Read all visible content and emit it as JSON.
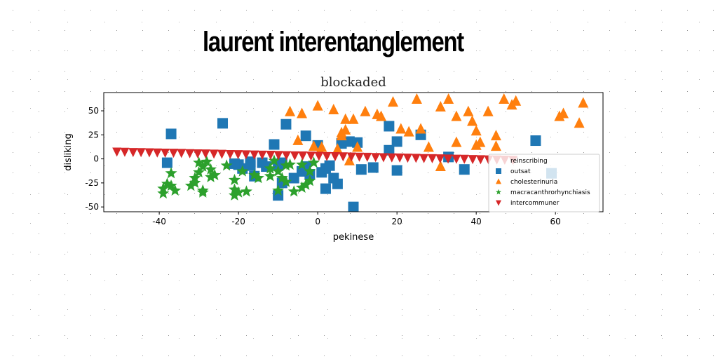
{
  "headline": "laurent interentanglement",
  "chart_data": {
    "type": "scatter",
    "title": "blockaded",
    "xlabel": "pekinese",
    "ylabel": "disliking",
    "xlim": [
      -54,
      72
    ],
    "ylim": [
      -55,
      69
    ],
    "xticks": [
      -40,
      -20,
      0,
      20,
      40,
      60
    ],
    "yticks": [
      -50,
      -25,
      0,
      25,
      50
    ],
    "legend_placement": "lower right",
    "series": [
      {
        "name": "reinscribing",
        "marker": "none",
        "color": "#ffffff",
        "points": []
      },
      {
        "name": "outsat",
        "marker": "square",
        "color": "#1f77b4",
        "points": [
          [
            -37,
            26
          ],
          [
            -24,
            37
          ],
          [
            -38,
            -4
          ],
          [
            -8,
            36
          ],
          [
            -11,
            15
          ],
          [
            -3,
            24
          ],
          [
            0,
            14
          ],
          [
            -2,
            -16
          ],
          [
            -4,
            -13
          ],
          [
            -9,
            -4
          ],
          [
            -10,
            -7
          ],
          [
            -14,
            -4
          ],
          [
            -17,
            -7
          ],
          [
            -19,
            -10
          ],
          [
            -20,
            -6
          ],
          [
            -21,
            -5
          ],
          [
            -16,
            -18
          ],
          [
            -9,
            -25
          ],
          [
            -6,
            -20
          ],
          [
            -3,
            -8
          ],
          [
            1,
            -14
          ],
          [
            2,
            -10
          ],
          [
            3,
            -7
          ],
          [
            4,
            -20
          ],
          [
            2,
            -31
          ],
          [
            5,
            -26
          ],
          [
            6,
            16
          ],
          [
            8,
            18
          ],
          [
            10,
            17
          ],
          [
            9,
            -50
          ],
          [
            11,
            -11
          ],
          [
            14,
            -9
          ],
          [
            18,
            34
          ],
          [
            18,
            9
          ],
          [
            20,
            18
          ],
          [
            20,
            -12
          ],
          [
            26,
            25
          ],
          [
            33,
            2
          ],
          [
            37,
            -11
          ],
          [
            55,
            19
          ],
          [
            59,
            -15
          ],
          [
            -10,
            -38
          ],
          [
            -13,
            -8
          ],
          [
            -17,
            -3
          ]
        ]
      },
      {
        "name": "cholesterinuria",
        "marker": "triangle-up",
        "color": "#ff7f0e",
        "points": [
          [
            -7,
            49
          ],
          [
            -4,
            47
          ],
          [
            0,
            55
          ],
          [
            4,
            51
          ],
          [
            7,
            41
          ],
          [
            9,
            41
          ],
          [
            12,
            49
          ],
          [
            15,
            46
          ],
          [
            16,
            44
          ],
          [
            19,
            59
          ],
          [
            25,
            62
          ],
          [
            31,
            54
          ],
          [
            33,
            62
          ],
          [
            35,
            44
          ],
          [
            38,
            49
          ],
          [
            39,
            39
          ],
          [
            40,
            29
          ],
          [
            41,
            17
          ],
          [
            43,
            49
          ],
          [
            45,
            24
          ],
          [
            45,
            13
          ],
          [
            47,
            62
          ],
          [
            49,
            56
          ],
          [
            50,
            60
          ],
          [
            61,
            44
          ],
          [
            62,
            47
          ],
          [
            66,
            37
          ],
          [
            67,
            58
          ],
          [
            -5,
            19
          ],
          [
            6,
            27
          ],
          [
            6,
            24
          ],
          [
            7,
            30
          ],
          [
            10,
            12
          ],
          [
            8,
            -2
          ],
          [
            5,
            10
          ],
          [
            21,
            31
          ],
          [
            23,
            28
          ],
          [
            26,
            31
          ],
          [
            28,
            12
          ],
          [
            31,
            -8
          ],
          [
            35,
            17
          ],
          [
            40,
            14
          ],
          [
            -1,
            13
          ],
          [
            1,
            12
          ]
        ]
      },
      {
        "name": "macracanthrorhynchiasis",
        "marker": "star",
        "color": "#2ca02c",
        "points": [
          [
            -39,
            -36
          ],
          [
            -39,
            -31
          ],
          [
            -38,
            -26
          ],
          [
            -37,
            -15
          ],
          [
            -36,
            -33
          ],
          [
            -32,
            -28
          ],
          [
            -31,
            -20
          ],
          [
            -31,
            -25
          ],
          [
            -30,
            -4
          ],
          [
            -30,
            -14
          ],
          [
            -29,
            -35
          ],
          [
            -29,
            -33
          ],
          [
            -29,
            -8
          ],
          [
            -28,
            -3
          ],
          [
            -27,
            -19
          ],
          [
            -27,
            -11
          ],
          [
            -26,
            -17
          ],
          [
            -23,
            -7
          ],
          [
            -21,
            -22
          ],
          [
            -21,
            -32
          ],
          [
            -21,
            -38
          ],
          [
            -20,
            -35
          ],
          [
            -19,
            -13
          ],
          [
            -18,
            -34
          ],
          [
            -16,
            -17
          ],
          [
            -15,
            -20
          ],
          [
            -12,
            -18
          ],
          [
            -12,
            -10
          ],
          [
            -11,
            -2
          ],
          [
            -10,
            -33
          ],
          [
            -10,
            -13
          ],
          [
            -9,
            -20
          ],
          [
            -8,
            -7
          ],
          [
            -8,
            -24
          ],
          [
            -7,
            -6
          ],
          [
            -6,
            -34
          ],
          [
            -4,
            -30
          ],
          [
            -4,
            -6
          ],
          [
            -3,
            -27
          ],
          [
            -2,
            -13
          ],
          [
            -2,
            -23
          ],
          [
            -1,
            -4
          ],
          [
            -37,
            -28
          ]
        ]
      },
      {
        "name": "intercommuner",
        "marker": "triangle-down",
        "color": "#d62728",
        "points": [
          [
            -50.7,
            7.7
          ],
          [
            -48.7,
            7.5
          ],
          [
            -46.6,
            7.3
          ],
          [
            -44.6,
            7.2
          ],
          [
            -42.5,
            7.0
          ],
          [
            -40.5,
            6.8
          ],
          [
            -38.5,
            6.6
          ],
          [
            -36.4,
            6.5
          ],
          [
            -34.4,
            6.3
          ],
          [
            -32.3,
            6.1
          ],
          [
            -30.3,
            5.9
          ],
          [
            -28.3,
            5.8
          ],
          [
            -26.2,
            5.6
          ],
          [
            -24.2,
            5.4
          ],
          [
            -22.1,
            5.2
          ],
          [
            -20.1,
            5.1
          ],
          [
            -18.1,
            4.9
          ],
          [
            -16.0,
            4.7
          ],
          [
            -14.0,
            4.5
          ],
          [
            -11.9,
            4.4
          ],
          [
            -9.9,
            4.2
          ],
          [
            -7.9,
            4.0
          ],
          [
            -5.8,
            3.8
          ],
          [
            -3.8,
            3.7
          ],
          [
            -1.7,
            3.5
          ],
          [
            0.3,
            3.3
          ],
          [
            2.3,
            3.1
          ],
          [
            4.4,
            3.0
          ],
          [
            6.4,
            2.8
          ],
          [
            8.5,
            2.6
          ],
          [
            10.5,
            2.4
          ],
          [
            12.5,
            2.3
          ],
          [
            14.6,
            2.1
          ],
          [
            16.6,
            1.9
          ],
          [
            18.7,
            1.7
          ],
          [
            20.7,
            1.6
          ],
          [
            22.7,
            1.4
          ],
          [
            24.8,
            1.2
          ],
          [
            26.8,
            1.0
          ],
          [
            28.9,
            0.9
          ],
          [
            30.9,
            0.7
          ],
          [
            32.9,
            0.5
          ],
          [
            35.0,
            0.3
          ],
          [
            37.0,
            0.2
          ],
          [
            39.1,
            0.0
          ],
          [
            41.1,
            -0.2
          ],
          [
            43.1,
            -0.4
          ],
          [
            45.2,
            -0.5
          ],
          [
            47.2,
            -0.7
          ],
          [
            49.3,
            -0.9
          ]
        ]
      }
    ]
  }
}
